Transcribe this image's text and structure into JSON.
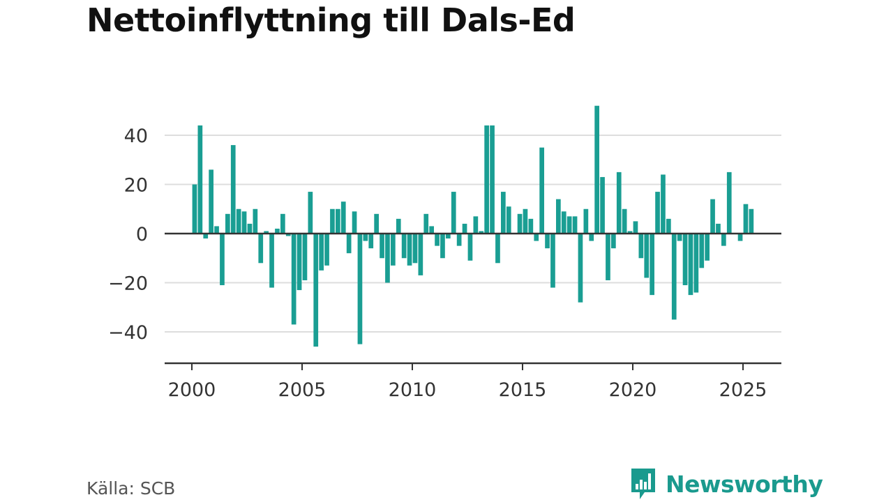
{
  "chart_data": {
    "type": "bar",
    "title": "Nettoinflyttning till Dals-Ed",
    "xlabel": "",
    "ylabel": "",
    "xlim": [
      1999.5,
      2026.4
    ],
    "ylim": [
      -52,
      57
    ],
    "y_ticks": [
      40,
      20,
      0,
      -20,
      -40
    ],
    "y_tick_labels": [
      "40",
      "20",
      "0",
      "−20",
      "−40"
    ],
    "x_ticks": [
      2000,
      2005,
      2010,
      2015,
      2020,
      2025
    ],
    "x_tick_labels": [
      "2000",
      "2005",
      "2010",
      "2015",
      "2020",
      "2025"
    ],
    "grid": true,
    "legend": "none",
    "bar_color": "#1a9e93",
    "x": [
      2000.125,
      2000.375,
      2000.625,
      2000.875,
      2001.125,
      2001.375,
      2001.625,
      2001.875,
      2002.125,
      2002.375,
      2002.625,
      2002.875,
      2003.125,
      2003.375,
      2003.625,
      2003.875,
      2004.125,
      2004.375,
      2004.625,
      2004.875,
      2005.125,
      2005.375,
      2005.625,
      2005.875,
      2006.125,
      2006.375,
      2006.625,
      2006.875,
      2007.125,
      2007.375,
      2007.625,
      2007.875,
      2008.125,
      2008.375,
      2008.625,
      2008.875,
      2009.125,
      2009.375,
      2009.625,
      2009.875,
      2010.125,
      2010.375,
      2010.625,
      2010.875,
      2011.125,
      2011.375,
      2011.625,
      2011.875,
      2012.125,
      2012.375,
      2012.625,
      2012.875,
      2013.125,
      2013.375,
      2013.625,
      2013.875,
      2014.125,
      2014.375,
      2014.625,
      2014.875,
      2015.125,
      2015.375,
      2015.625,
      2015.875,
      2016.125,
      2016.375,
      2016.625,
      2016.875,
      2017.125,
      2017.375,
      2017.625,
      2017.875,
      2018.125,
      2018.375,
      2018.625,
      2018.875,
      2019.125,
      2019.375,
      2019.625,
      2019.875,
      2020.125,
      2020.375,
      2020.625,
      2020.875,
      2021.125,
      2021.375,
      2021.625,
      2021.875,
      2022.125,
      2022.375,
      2022.625,
      2022.875,
      2023.125,
      2023.375,
      2023.625,
      2023.875,
      2024.125,
      2024.375,
      2024.625,
      2024.875,
      2025.125,
      2025.375
    ],
    "values": [
      20,
      44,
      -2,
      26,
      3,
      -21,
      8,
      36,
      10,
      9,
      4,
      10,
      -12,
      1,
      -22,
      2,
      8,
      -1,
      -37,
      -23,
      -19,
      17,
      -46,
      -15,
      -13,
      10,
      10,
      13,
      -8,
      9,
      -45,
      -3,
      -6,
      8,
      -10,
      -20,
      -13,
      6,
      -10,
      -13,
      -12,
      -17,
      8,
      3,
      -5,
      -10,
      -2,
      17,
      -5,
      4,
      -11,
      7,
      1,
      44,
      44,
      -12,
      17,
      11,
      0,
      8,
      10,
      6,
      -3,
      35,
      -6,
      -22,
      14,
      9,
      7,
      7,
      -28,
      10,
      -3,
      52,
      23,
      -19,
      -6,
      25,
      10,
      1,
      5,
      -10,
      -18,
      -25,
      17,
      24,
      6,
      -35,
      -3,
      -21,
      -25,
      -24,
      -14,
      -11,
      14,
      4,
      -5,
      25,
      0,
      -3,
      12,
      10
    ]
  },
  "source": "Källa: SCB",
  "brand": {
    "name": "Newsworthy",
    "icon": "newsworthy-logo-icon",
    "color": "#1a9a8e"
  }
}
